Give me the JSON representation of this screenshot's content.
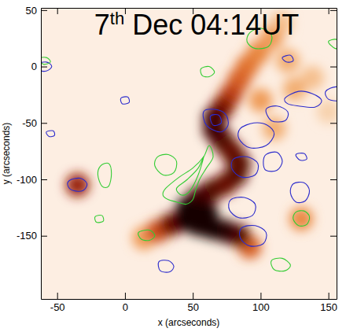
{
  "chart_data": {
    "type": "contour",
    "title": "7th Dec 04:14UT",
    "x_label": "x (arcseconds)",
    "y_label": "y (arcseconds)",
    "xlim": [
      -62,
      156
    ],
    "ylim": [
      -206,
      52
    ],
    "xticks": [
      -50,
      0,
      50,
      100,
      150
    ],
    "yticks": [
      -150,
      -100,
      -50,
      0,
      50
    ],
    "series": [
      {
        "type": "image",
        "x": [
          115,
          108,
          98,
          90,
          84,
          78,
          72,
          66,
          66,
          72,
          79,
          84,
          82,
          74,
          64,
          54,
          46,
          44,
          54,
          64,
          74,
          84,
          34,
          24,
          14,
          125,
          138,
          120,
          100,
          110,
          -35,
          130,
          60,
          92,
          150
        ],
        "y": [
          38,
          25,
          12,
          0,
          -12,
          -25,
          -36,
          -46,
          -56,
          -66,
          -76,
          -86,
          -96,
          -104,
          -110,
          -117,
          -126,
          -136,
          -140,
          -143,
          -146,
          -150,
          -140,
          -146,
          -152,
          -20,
          -10,
          5,
          -30,
          -55,
          -105,
          -135,
          -130,
          -160,
          -40
        ],
        "values": [
          0.25,
          0.35,
          0.4,
          0.45,
          0.5,
          0.6,
          0.75,
          0.9,
          0.9,
          0.85,
          0.8,
          0.85,
          0.85,
          0.8,
          0.85,
          0.9,
          1,
          1,
          1,
          1,
          0.95,
          0.85,
          0.8,
          0.55,
          0.35,
          0.3,
          0.25,
          0.3,
          0.35,
          0.3,
          0.7,
          0.4,
          1,
          0.5,
          0.2
        ]
      },
      {
        "type": "line",
        "color": "#2b2bcc",
        "x": [
          58,
          66,
          74,
          76,
          70,
          60
        ],
        "y": [
          -40,
          -38,
          -42,
          -52,
          -58,
          -52
        ]
      },
      {
        "type": "line",
        "color": "#2b2bcc",
        "x": [
          63,
          69,
          71,
          65
        ],
        "y": [
          -44,
          -43,
          -50,
          -52
        ]
      },
      {
        "type": "line",
        "color": "#2b2bcc",
        "x": [
          85,
          95,
          105,
          110,
          104,
          92,
          84
        ],
        "y": [
          -55,
          -50,
          -52,
          -60,
          -70,
          -72,
          -64
        ]
      },
      {
        "type": "line",
        "color": "#2b2bcc",
        "x": [
          104,
          112,
          120,
          118,
          108
        ],
        "y": [
          -38,
          -35,
          -40,
          -48,
          -48
        ]
      },
      {
        "type": "line",
        "color": "#2b2bcc",
        "x": [
          118,
          128,
          138,
          145,
          140,
          128,
          120
        ],
        "y": [
          -28,
          -22,
          -24,
          -30,
          -36,
          -35,
          -33
        ]
      },
      {
        "type": "line",
        "color": "#2b2bcc",
        "x": [
          148,
          156,
          162,
          158,
          150
        ],
        "y": [
          -22,
          -18,
          -24,
          -30,
          -29
        ]
      },
      {
        "type": "line",
        "color": "#2b2bcc",
        "x": [
          80,
          90,
          98,
          96,
          86,
          79
        ],
        "y": [
          -82,
          -80,
          -86,
          -96,
          -98,
          -91
        ]
      },
      {
        "type": "line",
        "color": "#2b2bcc",
        "x": [
          104,
          112,
          116,
          112,
          104,
          102
        ],
        "y": [
          -78,
          -76,
          -84,
          -92,
          -92,
          -85
        ]
      },
      {
        "type": "line",
        "color": "#2b2bcc",
        "x": [
          78,
          88,
          96,
          94,
          84,
          77
        ],
        "y": [
          -118,
          -116,
          -122,
          -132,
          -134,
          -127
        ]
      },
      {
        "type": "line",
        "color": "#2b2bcc",
        "x": [
          86,
          96,
          104,
          102,
          92,
          85
        ],
        "y": [
          -143,
          -141,
          -147,
          -157,
          -159,
          -152
        ]
      },
      {
        "type": "line",
        "color": "#2b2bcc",
        "x": [
          124,
          132,
          136,
          133,
          126,
          122
        ],
        "y": [
          -104,
          -103,
          -110,
          -119,
          -120,
          -112
        ]
      },
      {
        "type": "line",
        "color": "#2b2bcc",
        "x": [
          -41,
          -33,
          -28,
          -31,
          -38,
          -42
        ],
        "y": [
          -101,
          -99,
          -104,
          -110,
          -110,
          -106
        ]
      },
      {
        "type": "line",
        "color": "#2b2bcc",
        "x": [
          -66,
          -58,
          -54,
          -58,
          -64
        ],
        "y": [
          2,
          4,
          0,
          -4,
          -3
        ]
      },
      {
        "type": "line",
        "color": "#2b2bcc",
        "x": [
          25,
          32,
          36,
          33,
          26
        ],
        "y": [
          -173,
          -172,
          -177,
          -182,
          -181
        ]
      },
      {
        "type": "line",
        "color": "#2b2bcc",
        "x": [
          -58,
          -53,
          -52,
          -56
        ],
        "y": [
          -58,
          -57,
          -61,
          -62
        ]
      },
      {
        "type": "line",
        "color": "#2b2bcc",
        "x": [
          126,
          132,
          134,
          129
        ],
        "y": [
          -78,
          -77,
          -82,
          -83
        ]
      },
      {
        "type": "line",
        "color": "#2b2bcc",
        "x": [
          -3,
          2,
          3,
          -2
        ],
        "y": [
          -28,
          -27,
          -32,
          -33
        ]
      },
      {
        "type": "line",
        "color": "#2b2bcc",
        "x": [
          116,
          122,
          124,
          119
        ],
        "y": [
          8,
          10,
          5,
          4
        ]
      },
      {
        "type": "line",
        "color": "#33cc33",
        "x": [
          30,
          40,
          50,
          58,
          62,
          65,
          60,
          55,
          52,
          50,
          45,
          38,
          32,
          28
        ],
        "y": [
          -108,
          -98,
          -90,
          -80,
          -70,
          -80,
          -90,
          -100,
          -110,
          -118,
          -122,
          -120,
          -118,
          -114
        ]
      },
      {
        "type": "line",
        "color": "#33cc33",
        "x": [
          38,
          46,
          54,
          58,
          54,
          48,
          42
        ],
        "y": [
          -108,
          -100,
          -90,
          -80,
          -96,
          -110,
          -114
        ]
      },
      {
        "type": "line",
        "color": "#33cc33",
        "x": [
          24,
          32,
          38,
          36,
          28,
          22
        ],
        "y": [
          -80,
          -78,
          -84,
          -94,
          -96,
          -88
        ]
      },
      {
        "type": "line",
        "color": "#33cc33",
        "x": [
          -18,
          -12,
          -10,
          -12,
          -17,
          -20
        ],
        "y": [
          -88,
          -86,
          -95,
          -106,
          -106,
          -96
        ]
      },
      {
        "type": "line",
        "color": "#33cc33",
        "x": [
          92,
          100,
          108,
          106,
          96,
          90
        ],
        "y": [
          30,
          34,
          28,
          18,
          16,
          22
        ]
      },
      {
        "type": "line",
        "color": "#33cc33",
        "x": [
          126,
          132,
          136,
          134,
          128,
          124
        ],
        "y": [
          -129,
          -128,
          -133,
          -140,
          -141,
          -135
        ]
      },
      {
        "type": "line",
        "color": "#33cc33",
        "x": [
          -64,
          -58,
          -55,
          -60
        ],
        "y": [
          7,
          8,
          4,
          2
        ]
      },
      {
        "type": "line",
        "color": "#33cc33",
        "x": [
          10,
          18,
          22,
          18,
          12
        ],
        "y": [
          -147,
          -145,
          -150,
          -154,
          -153
        ]
      },
      {
        "type": "line",
        "color": "#33cc33",
        "x": [
          150,
          156,
          160,
          155
        ],
        "y": [
          22,
          24,
          18,
          16
        ]
      },
      {
        "type": "line",
        "color": "#33cc33",
        "x": [
          56,
          62,
          66,
          62,
          57
        ],
        "y": [
          -2,
          0,
          -5,
          -9,
          -8
        ]
      },
      {
        "type": "line",
        "color": "#33cc33",
        "x": [
          108,
          116,
          122,
          118,
          110
        ],
        "y": [
          -172,
          -170,
          -176,
          -181,
          -180
        ]
      },
      {
        "type": "line",
        "color": "#33cc33",
        "x": [
          -22,
          -17,
          -16,
          -21
        ],
        "y": [
          -133,
          -132,
          -137,
          -138
        ]
      }
    ]
  }
}
